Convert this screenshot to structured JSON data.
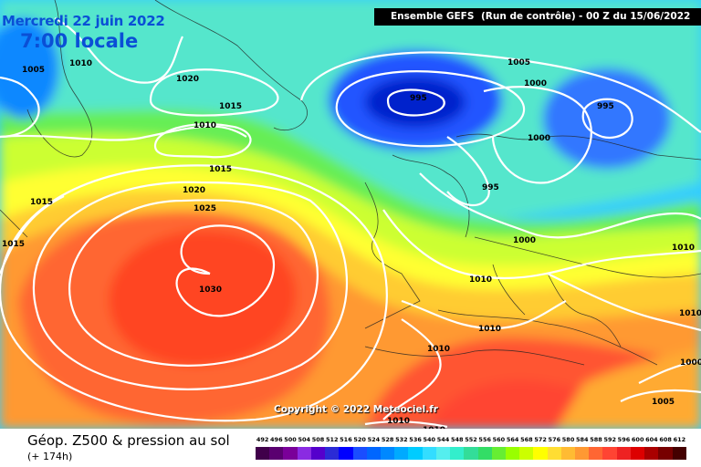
{
  "header": {
    "date": "Mercredi 22 juin 2022",
    "time": "7:00 locale",
    "model": "Ensemble GEFS",
    "run": "(Run de contrôle)",
    "init": "- 00 Z du 15/06/2022"
  },
  "copyright": "Copyright © 2022 Meteociel.fr",
  "legend": {
    "title": "Géop. Z500 & pression au sol",
    "lead": "(+ 174h)",
    "scale_values": [
      "492",
      "496",
      "500",
      "504",
      "508",
      "512",
      "516",
      "520",
      "524",
      "528",
      "532",
      "536",
      "540",
      "544",
      "548",
      "552",
      "556",
      "560",
      "564",
      "568",
      "572",
      "576",
      "580",
      "584",
      "588",
      "592",
      "596",
      "600",
      "604",
      "608",
      "612"
    ],
    "scale_colors": [
      "#40004a",
      "#5a0070",
      "#7a0099",
      "#8a2be2",
      "#5500cc",
      "#2b2bd6",
      "#0000ff",
      "#1a4dff",
      "#0066ff",
      "#0088ff",
      "#00aaff",
      "#00ccff",
      "#33ddff",
      "#55eeee",
      "#33eecc",
      "#33dd99",
      "#33dd66",
      "#66ee33",
      "#99ff00",
      "#ccff00",
      "#ffff00",
      "#ffdd33",
      "#ffbb33",
      "#ff9933",
      "#ff6633",
      "#ff4433",
      "#ee2222",
      "#dd0000",
      "#aa0000",
      "#770000",
      "#440000"
    ]
  },
  "isobars": [
    "1005",
    "1010",
    "1020",
    "1015",
    "1010",
    "1015",
    "1020",
    "1025",
    "1030",
    "1015",
    "1015",
    "995",
    "1005",
    "1000",
    "995",
    "1000",
    "995",
    "1000",
    "1010",
    "1010",
    "1010",
    "1010",
    "1000",
    "1005",
    "1010",
    "1010"
  ],
  "colors": {
    "high_core": "#ff5522",
    "low_core": "#1133dd",
    "isobar": "#ffffff"
  }
}
